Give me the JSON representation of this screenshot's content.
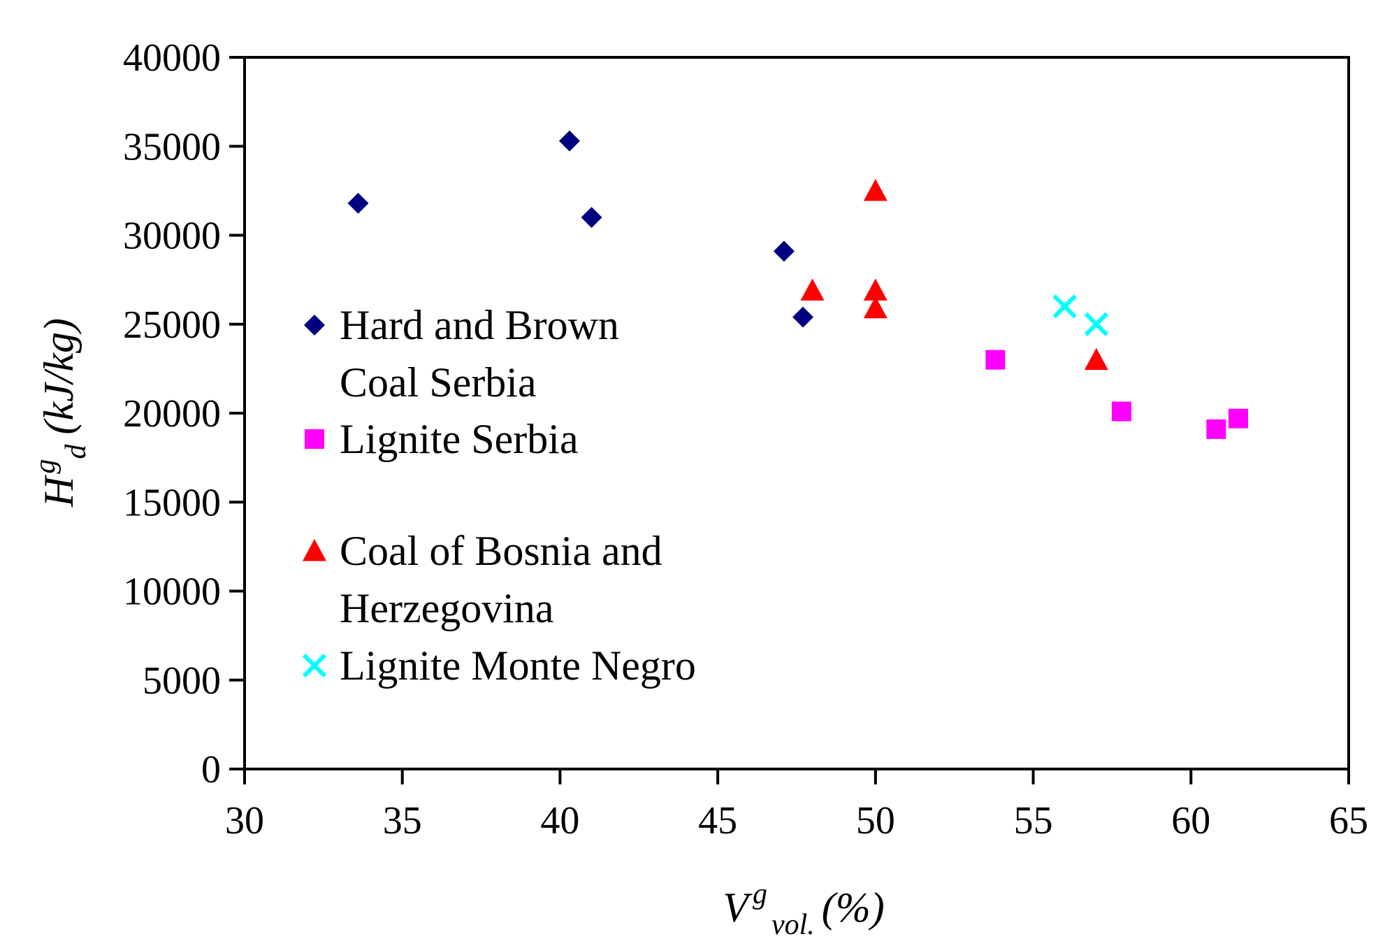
{
  "chart_data": {
    "type": "scatter",
    "title": "",
    "xlabel": {
      "base": "V",
      "sup": "g",
      "sub": "vol.",
      "unit": "(%)"
    },
    "ylabel": {
      "base": "H",
      "sup": "g",
      "sub": "d",
      "unit": "(kJ/kg)"
    },
    "xlim": [
      30,
      65
    ],
    "ylim": [
      0,
      40000
    ],
    "xticks": [
      "30",
      "35",
      "40",
      "45",
      "50",
      "55",
      "60",
      "65"
    ],
    "yticks": [
      "0",
      "5000",
      "10000",
      "15000",
      "20000",
      "25000",
      "30000",
      "35000",
      "40000"
    ],
    "grid": false,
    "legend_position": "left-middle inside plot",
    "series": [
      {
        "name_lines": [
          "Hard and Brown",
          "Coal Serbia"
        ],
        "marker": "diamond",
        "color": "#000080",
        "points": [
          [
            33.6,
            31800
          ],
          [
            40.3,
            35300
          ],
          [
            41.0,
            31000
          ],
          [
            47.1,
            29100
          ],
          [
            47.7,
            25400
          ]
        ]
      },
      {
        "name_lines": [
          "Lignite Serbia"
        ],
        "marker": "square",
        "color": "#FF00FF",
        "points": [
          [
            53.8,
            23000
          ],
          [
            57.8,
            20100
          ],
          [
            60.8,
            19100
          ],
          [
            61.5,
            19700
          ]
        ]
      },
      {
        "name_lines": [
          "Coal of Bosnia and",
          "Herzegovina"
        ],
        "marker": "triangle",
        "color": "#FF0000",
        "points": [
          [
            50.0,
            32500
          ],
          [
            48.0,
            26900
          ],
          [
            50.0,
            26900
          ],
          [
            50.0,
            25900
          ],
          [
            57.0,
            23000
          ]
        ]
      },
      {
        "name_lines": [
          "Lignite Monte Negro"
        ],
        "marker": "x",
        "color": "#00FFFF",
        "points": [
          [
            56.0,
            26000
          ],
          [
            57.0,
            25000
          ]
        ]
      }
    ]
  }
}
